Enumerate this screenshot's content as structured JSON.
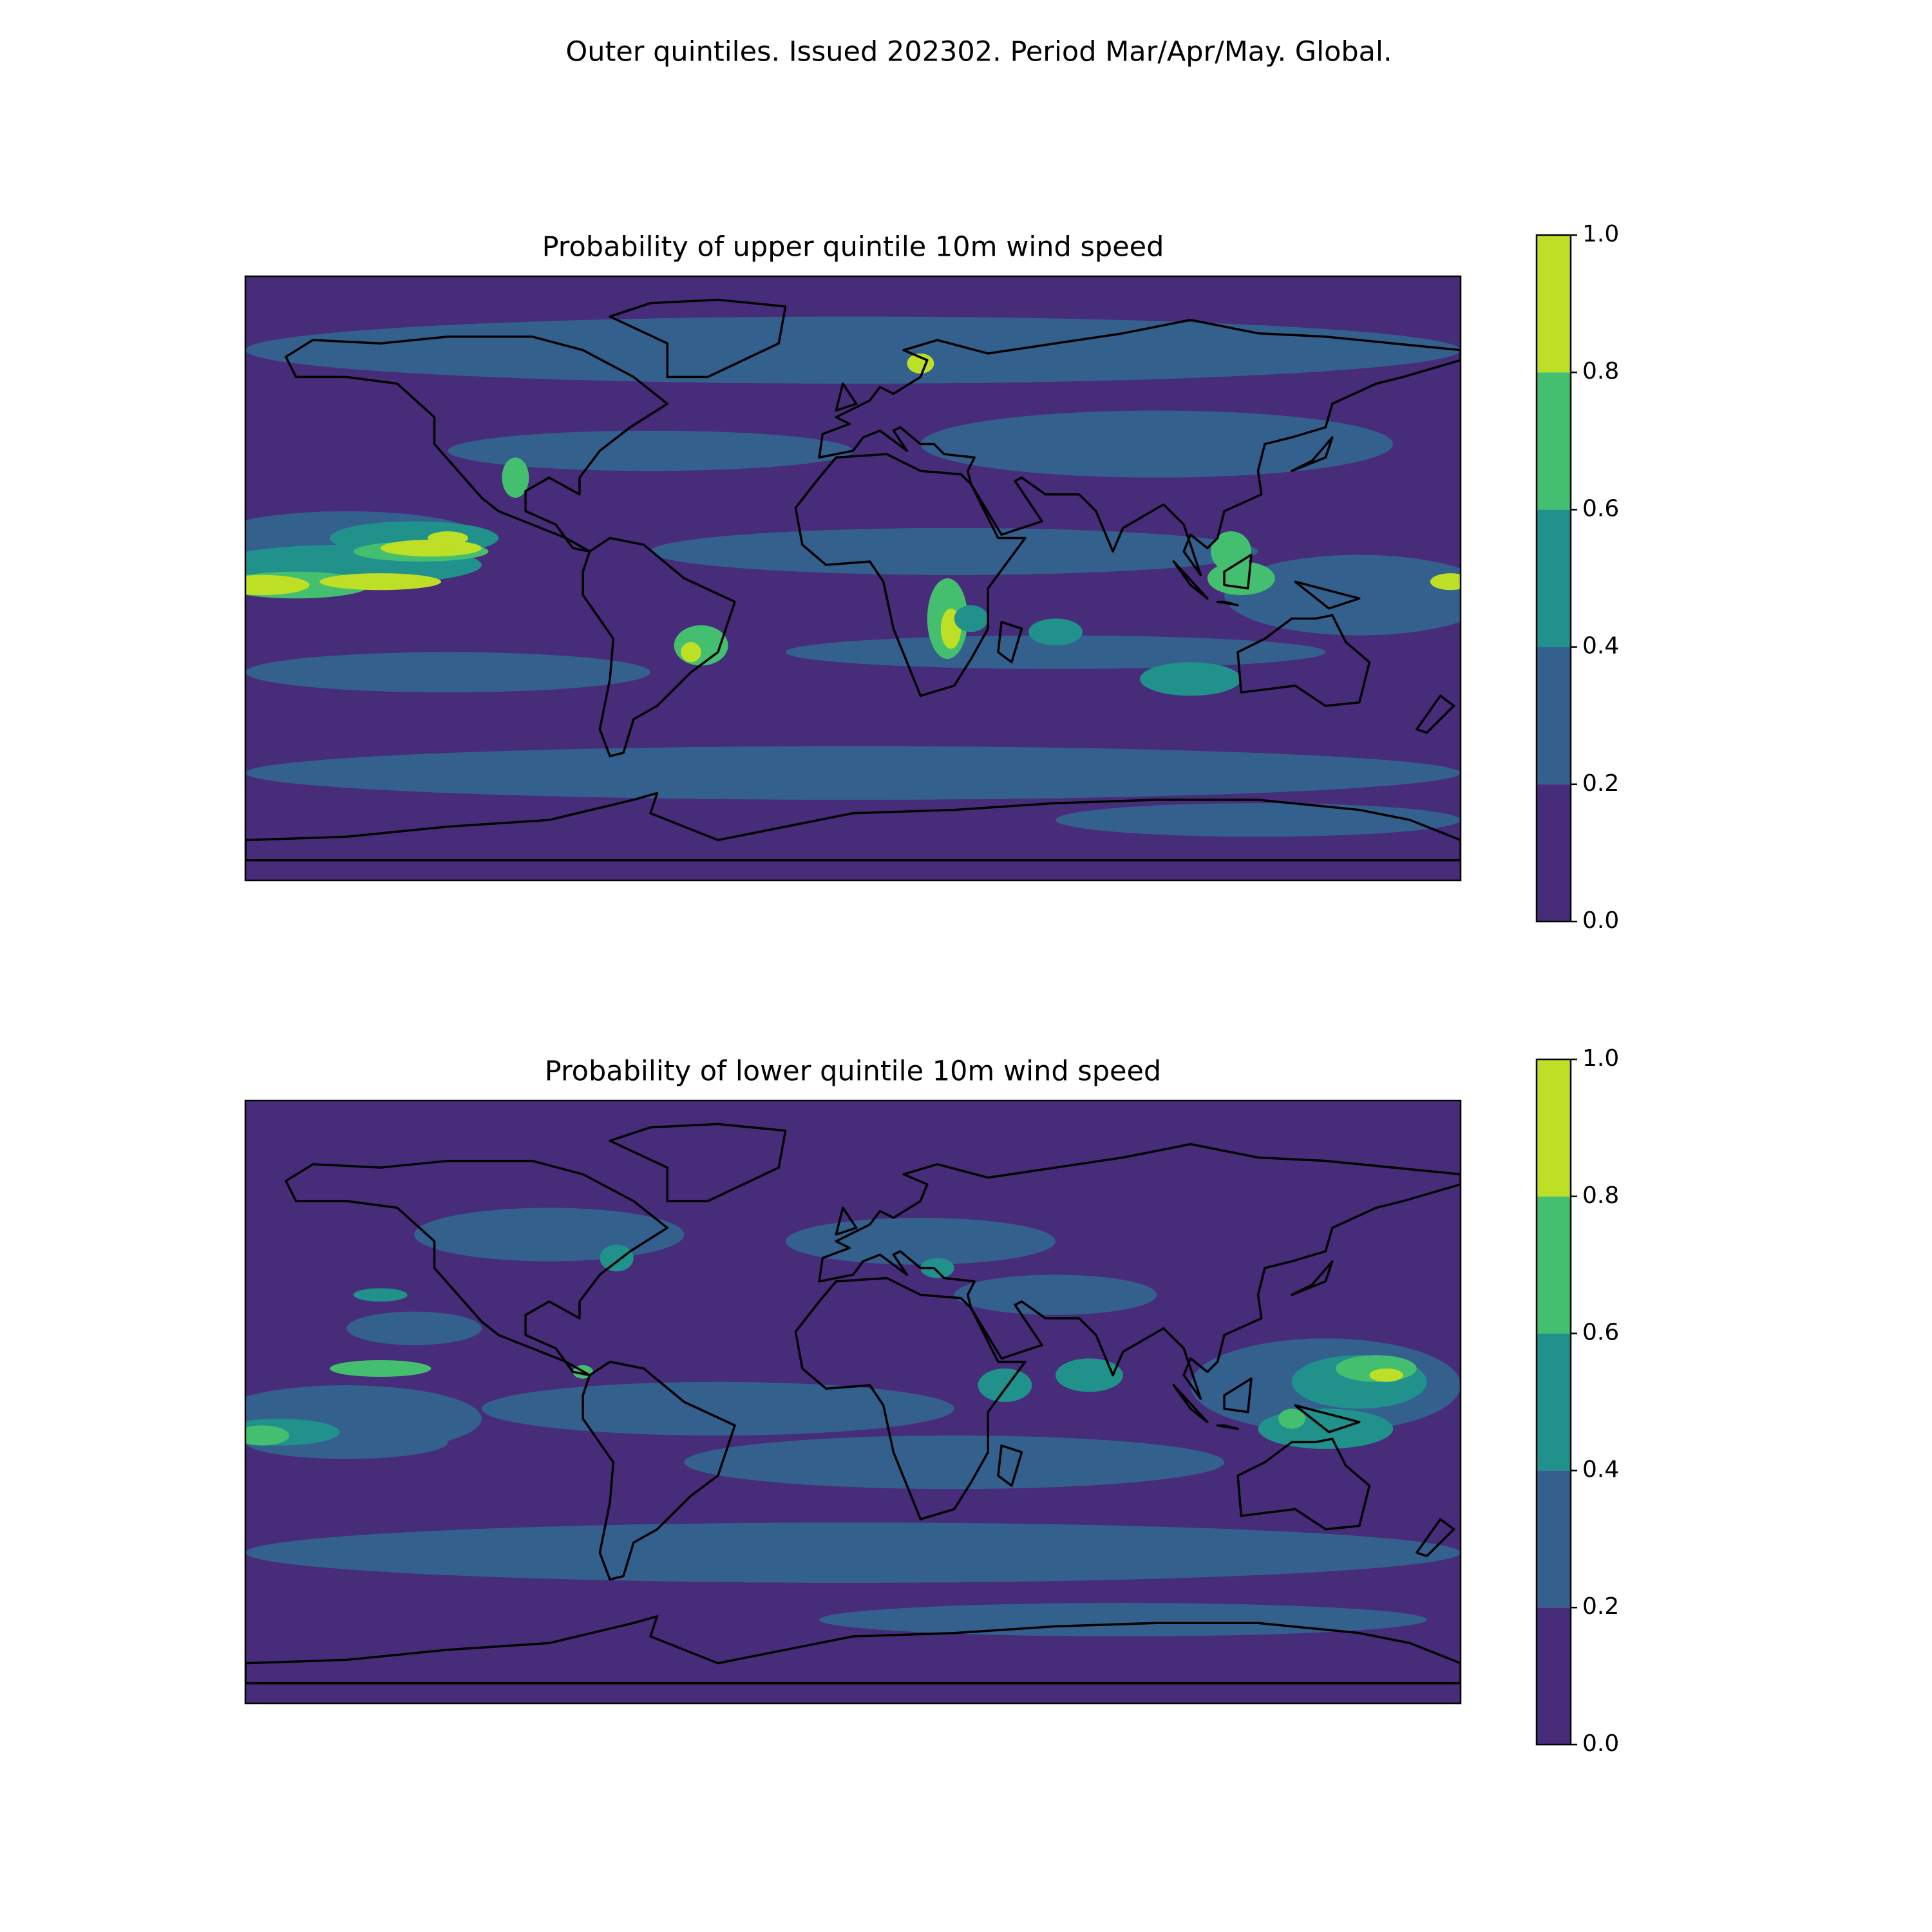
{
  "title": "Outer quintiles. Issued 202302. Period Mar/Apr/May. Global.",
  "maps": [
    {
      "title": "Probability of upper quintile 10m wind speed"
    },
    {
      "title": "Probability of lower quintile 10m wind speed"
    }
  ],
  "colorbar": {
    "levels": [
      {
        "value": 0,
        "label": "0.0"
      },
      0.2,
      0.4,
      0.6,
      0.8,
      {
        "value": 1,
        "label": "1.0"
      }
    ],
    "colors": [
      "#472c7a",
      "#33608d",
      "#21918c",
      "#44bf70",
      "#bddf26"
    ]
  }
}
